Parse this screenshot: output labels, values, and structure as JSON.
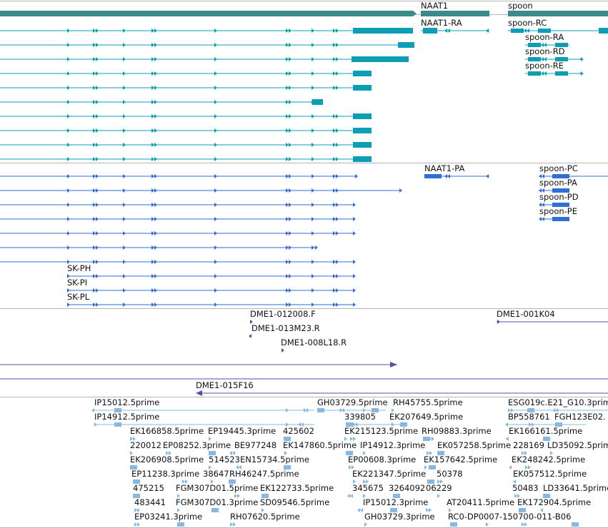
{
  "colors": {
    "gene": "#3d8a8a",
    "transcript": "#0b9eb5",
    "protein": "#2f6fd6",
    "clone": "#5b4da6",
    "est": "#86b8e2",
    "divider": "#b5b5b5",
    "text": "#111111"
  },
  "gene_track": {
    "labels": [
      "NAAT1",
      "spoon"
    ]
  },
  "transcript_track": {
    "labels": [
      "NAAT1-RA",
      "spoon-RC",
      "spoon-RA",
      "spoon-RD",
      "spoon-RE"
    ]
  },
  "protein_track": {
    "labels": [
      "NAAT1-PA",
      "spoon-PC",
      "spoon-PA",
      "spoon-PD",
      "spoon-PE",
      "SK-PH",
      "SK-PI",
      "SK-PL"
    ]
  },
  "clone_track": {
    "labels": [
      "DME1-012008.F",
      "DME1-001K04",
      "DME1-013M23.R",
      "DME1-008L18.R",
      "DME1-015F16"
    ]
  },
  "est_track": {
    "labels": [
      "IP15012.5prime",
      "GH03729.5prime",
      "RH45755.5prime",
      "ESG019c.E21_G10.3prim",
      "IP14912.5prime",
      "339805",
      "EK207649.5prime",
      "BP558761",
      "FGH123E02.",
      "EK166858.5prime",
      "EP19445.3prime",
      "425602",
      "EK215123.5prime",
      "RH09883.3prime",
      "EK166161.5prime",
      "220012",
      "EP08252.3prime",
      "BE977248",
      "EK147860.5prime",
      "IP14912.3prime",
      "EK057258.5prime",
      "228169",
      "LD35092.5prime",
      "EK206908.5prime",
      "514523",
      "EN15734.5prime",
      "EP00608.3prime",
      "EK157642.5prime",
      "EK248242.5prime",
      "EP11238.3prime",
      "38647",
      "RH46247.5prime",
      "EK221347.5prime",
      "50378",
      "EK057512.5prime",
      "475215",
      "FGM307D01.5prime",
      "EK122733.5prime",
      "345675",
      "3264092",
      "06229",
      "50483",
      "LD33641.5prime",
      "483441",
      "FGM307D01.3prime",
      "SD09546.5prime",
      "IP15012.3prime",
      "AT20411.5prime",
      "EK172904.5prime",
      "EP03241.3prime",
      "RH07620.5prime",
      "GH03729.3prime",
      "RC0-DP0007-150700-011-B06"
    ]
  }
}
